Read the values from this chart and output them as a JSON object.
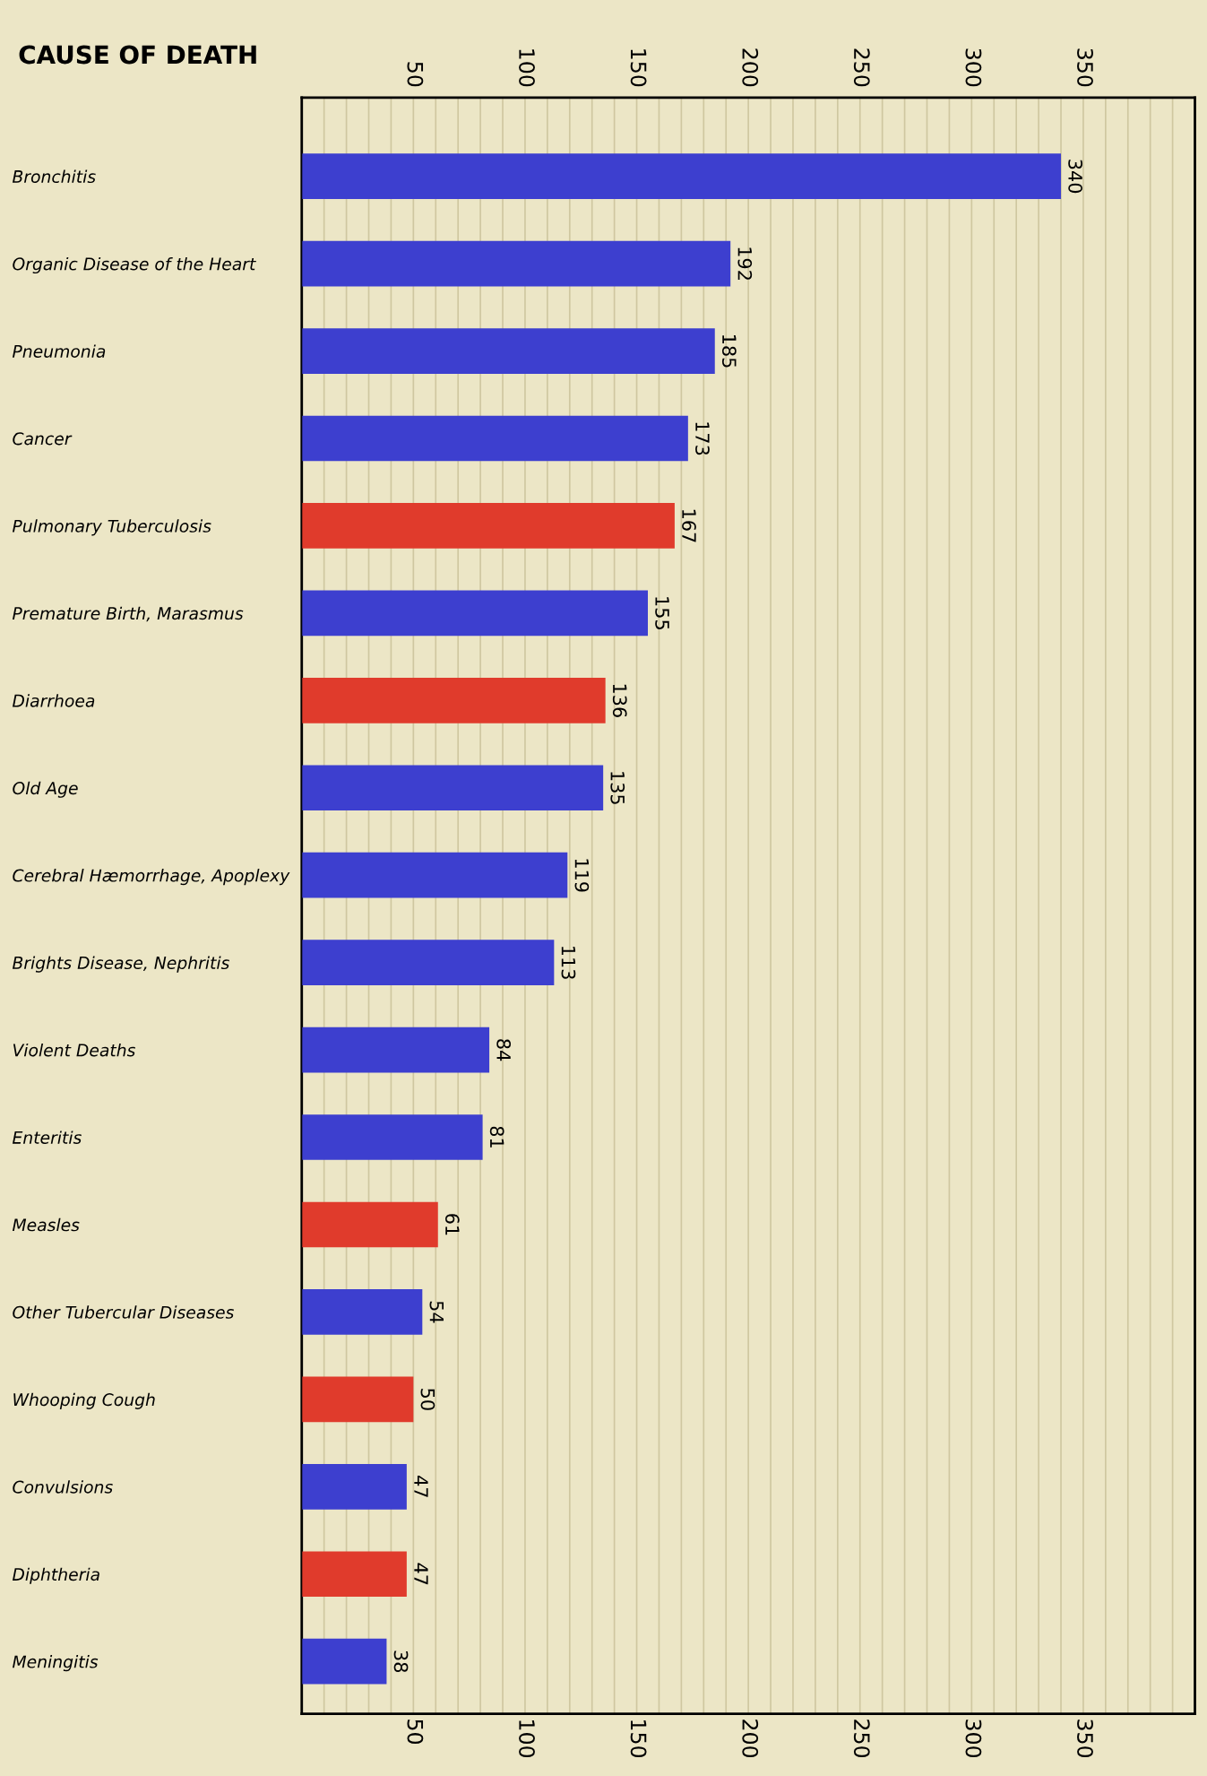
{
  "chart_data": {
    "type": "bar",
    "orientation": "horizontal",
    "ylabel": "CAUSE OF DEATH",
    "categories": [
      "Bronchitis",
      "Organic Disease of the Heart",
      "Pneumonia",
      "Cancer",
      "Pulmonary Tuberculosis",
      "Premature Birth, Marasmus",
      "Diarrhoea",
      "Old Age",
      "Cerebral Hæmorrhage, Apoplexy",
      "Brights Disease, Nephritis",
      "Violent Deaths",
      "Enteritis",
      "Measles",
      "Other Tubercular Diseases",
      "Whooping Cough",
      "Convulsions",
      "Diphtheria",
      "Meningitis"
    ],
    "values": [
      340,
      192,
      185,
      173,
      167,
      155,
      136,
      135,
      119,
      113,
      84,
      81,
      61,
      54,
      50,
      47,
      47,
      38
    ],
    "colors": [
      "#3d3fcf",
      "#3d3fcf",
      "#3d3fcf",
      "#3d3fcf",
      "#e03b2c",
      "#3d3fcf",
      "#e03b2c",
      "#3d3fcf",
      "#3d3fcf",
      "#3d3fcf",
      "#3d3fcf",
      "#3d3fcf",
      "#e03b2c",
      "#3d3fcf",
      "#e03b2c",
      "#3d3fcf",
      "#e03b2c",
      "#3d3fcf"
    ],
    "data_labels": true,
    "grid": "x",
    "xlim": [
      0,
      400
    ],
    "xticks": [
      {
        "value": 10,
        "label": null
      },
      {
        "value": 20,
        "label": null
      },
      {
        "value": 30,
        "label": null
      },
      {
        "value": 40,
        "label": null
      },
      50,
      {
        "value": 60,
        "label": null
      },
      {
        "value": 70,
        "label": null
      },
      {
        "value": 80,
        "label": null
      },
      {
        "value": 90,
        "label": null
      },
      100,
      {
        "value": 110,
        "label": null
      },
      {
        "value": 120,
        "label": null
      },
      {
        "value": 130,
        "label": null
      },
      {
        "value": 140,
        "label": null
      },
      150,
      {
        "value": 160,
        "label": null
      },
      {
        "value": 170,
        "label": null
      },
      {
        "value": 180,
        "label": null
      },
      {
        "value": 190,
        "label": null
      },
      200,
      {
        "value": 210,
        "label": null
      },
      {
        "value": 220,
        "label": null
      },
      {
        "value": 230,
        "label": null
      },
      {
        "value": 240,
        "label": null
      },
      250,
      {
        "value": 260,
        "label": null
      },
      {
        "value": 270,
        "label": null
      },
      {
        "value": 280,
        "label": null
      },
      {
        "value": 290,
        "label": null
      },
      300,
      {
        "value": 310,
        "label": null
      },
      {
        "value": 320,
        "label": null
      },
      {
        "value": 330,
        "label": null
      },
      {
        "value": 340,
        "label": null
      },
      350,
      {
        "value": 360,
        "label": null
      },
      {
        "value": 370,
        "label": null
      },
      {
        "value": 380,
        "label": null
      },
      {
        "value": 390,
        "label": null
      }
    ],
    "x2lim": [
      0,
      400
    ],
    "x2ticks": [
      50,
      100,
      150,
      200,
      250,
      300,
      350
    ]
  }
}
